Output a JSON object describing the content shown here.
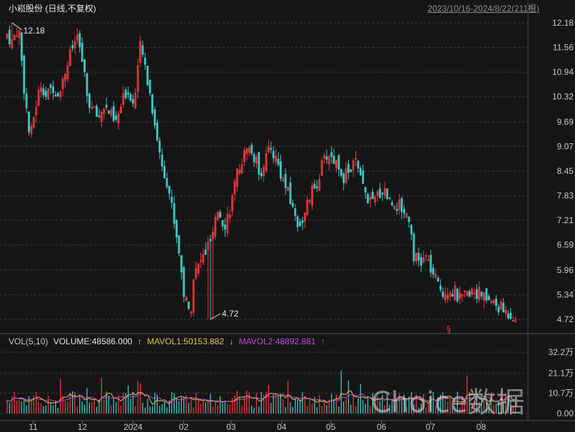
{
  "header": {
    "title": "小崧股份 (日线,不复权)",
    "range": "2023/10/16-2024/8/22(211根)"
  },
  "price_axis_labels": [
    "12.18",
    "11.56",
    "10.94",
    "10.32",
    "9.69",
    "9.07",
    "8.45",
    "7.83",
    "7.21",
    "6.59",
    "5.96",
    "5.34",
    "4.72"
  ],
  "volume_axis_labels": [
    "32.2万",
    "21.1万",
    "10.7万",
    "0.00"
  ],
  "x_axis_labels": [
    {
      "label": "11",
      "date": "2023-11"
    },
    {
      "label": "12",
      "date": "2023-12"
    },
    {
      "label": "2024",
      "date": "2024-01"
    },
    {
      "label": "02",
      "date": "2024-02"
    },
    {
      "label": "03",
      "date": "2024-03"
    },
    {
      "label": "04",
      "date": "2024-04"
    },
    {
      "label": "05",
      "date": "2024-05"
    },
    {
      "label": "06",
      "date": "2024-06"
    },
    {
      "label": "07",
      "date": "2024-07"
    },
    {
      "label": "08",
      "date": "2024-08"
    }
  ],
  "annotations": {
    "high": "12.18",
    "low": "4.72"
  },
  "volume_legend": {
    "name": "VOL(5,10)",
    "volume": "VOLUME:48586.000",
    "mavol1_arrow": "↑",
    "mavol1": "MAVOL1:50153.882",
    "mavol2_arrow": "↓",
    "mavol2": "MAVOL2:48892.881",
    "tail_arrow": "↑"
  },
  "marker_glyph": "§",
  "watermark": "Choice数据",
  "colors": {
    "up": "#e8383d",
    "down": "#3ec6c6",
    "grid": "#3a3a3a",
    "text": "#c8c8c8",
    "mavol1": "#e6c24a",
    "mavol2": "#c04cd6",
    "background": "#151515"
  },
  "chart_data": {
    "type": "candlestick",
    "title": "小崧股份 (日线,不复权)",
    "period": "2023/10/16-2024/8/22",
    "bars": 211,
    "y_range": [
      4.72,
      12.18
    ],
    "high": 12.18,
    "low": 4.72,
    "close_path": [
      [
        "2023-10-16",
        11.9
      ],
      [
        "2023-10-19",
        11.7
      ],
      [
        "2023-10-23",
        12.1
      ],
      [
        "2023-10-26",
        10.7
      ],
      [
        "2023-10-30",
        9.2
      ],
      [
        "2023-11-02",
        10.0
      ],
      [
        "2023-11-06",
        10.7
      ],
      [
        "2023-11-09",
        10.3
      ],
      [
        "2023-11-13",
        10.6
      ],
      [
        "2023-11-16",
        10.4
      ],
      [
        "2023-11-20",
        10.9
      ],
      [
        "2023-11-23",
        11.3
      ],
      [
        "2023-11-27",
        11.8
      ],
      [
        "2023-11-30",
        11.5
      ],
      [
        "2023-12-04",
        10.3
      ],
      [
        "2023-12-07",
        10.0
      ],
      [
        "2023-12-11",
        9.8
      ],
      [
        "2023-12-14",
        10.1
      ],
      [
        "2023-12-18",
        9.9
      ],
      [
        "2023-12-21",
        9.6
      ],
      [
        "2023-12-25",
        10.1
      ],
      [
        "2023-12-28",
        10.5
      ],
      [
        "2024-01-02",
        10.2
      ],
      [
        "2024-01-05",
        11.6
      ],
      [
        "2024-01-08",
        11.2
      ],
      [
        "2024-01-11",
        10.5
      ],
      [
        "2024-01-15",
        9.5
      ],
      [
        "2024-01-18",
        8.7
      ],
      [
        "2024-01-22",
        8.2
      ],
      [
        "2024-01-25",
        7.5
      ],
      [
        "2024-01-29",
        6.5
      ],
      [
        "2024-02-01",
        5.4
      ],
      [
        "2024-02-05",
        4.8
      ],
      [
        "2024-02-07",
        5.8
      ],
      [
        "2024-02-19",
        6.8
      ],
      [
        "2024-02-22",
        7.5
      ],
      [
        "2024-02-26",
        7.1
      ],
      [
        "2024-03-01",
        7.6
      ],
      [
        "2024-03-05",
        8.4
      ],
      [
        "2024-03-08",
        8.8
      ],
      [
        "2024-03-12",
        9.0
      ],
      [
        "2024-03-15",
        8.8
      ],
      [
        "2024-03-19",
        8.4
      ],
      [
        "2024-03-22",
        8.8
      ],
      [
        "2024-03-26",
        9.0
      ],
      [
        "2024-03-29",
        8.7
      ],
      [
        "2024-04-02",
        8.2
      ],
      [
        "2024-04-08",
        7.5
      ],
      [
        "2024-04-11",
        7.1
      ],
      [
        "2024-04-15",
        7.3
      ],
      [
        "2024-04-18",
        7.8
      ],
      [
        "2024-04-22",
        8.1
      ],
      [
        "2024-04-25",
        8.5
      ],
      [
        "2024-04-29",
        8.9
      ],
      [
        "2024-05-06",
        8.6
      ],
      [
        "2024-05-09",
        8.3
      ],
      [
        "2024-05-13",
        8.5
      ],
      [
        "2024-05-16",
        8.7
      ],
      [
        "2024-05-20",
        8.1
      ],
      [
        "2024-05-23",
        7.8
      ],
      [
        "2024-05-27",
        7.6
      ],
      [
        "2024-05-30",
        7.9
      ],
      [
        "2024-06-03",
        8.0
      ],
      [
        "2024-06-06",
        7.7
      ],
      [
        "2024-06-11",
        7.6
      ],
      [
        "2024-06-14",
        7.5
      ],
      [
        "2024-06-18",
        7.3
      ],
      [
        "2024-06-21",
        6.3
      ],
      [
        "2024-06-25",
        6.1
      ],
      [
        "2024-06-28",
        6.3
      ],
      [
        "2024-07-02",
        5.9
      ],
      [
        "2024-07-05",
        5.6
      ],
      [
        "2024-07-09",
        5.4
      ],
      [
        "2024-07-12",
        5.5
      ],
      [
        "2024-07-16",
        5.4
      ],
      [
        "2024-07-19",
        5.2
      ],
      [
        "2024-07-23",
        5.3
      ],
      [
        "2024-07-26",
        5.5
      ],
      [
        "2024-07-30",
        5.4
      ],
      [
        "2024-08-02",
        5.3
      ],
      [
        "2024-08-06",
        5.2
      ],
      [
        "2024-08-09",
        5.1
      ],
      [
        "2024-08-13",
        5.0
      ],
      [
        "2024-08-16",
        4.9
      ],
      [
        "2024-08-22",
        4.8
      ]
    ],
    "volume_range": [
      0,
      322000
    ],
    "volume_last": 48586.0,
    "mavol1_last": 50153.882,
    "mavol2_last": 48892.881
  }
}
